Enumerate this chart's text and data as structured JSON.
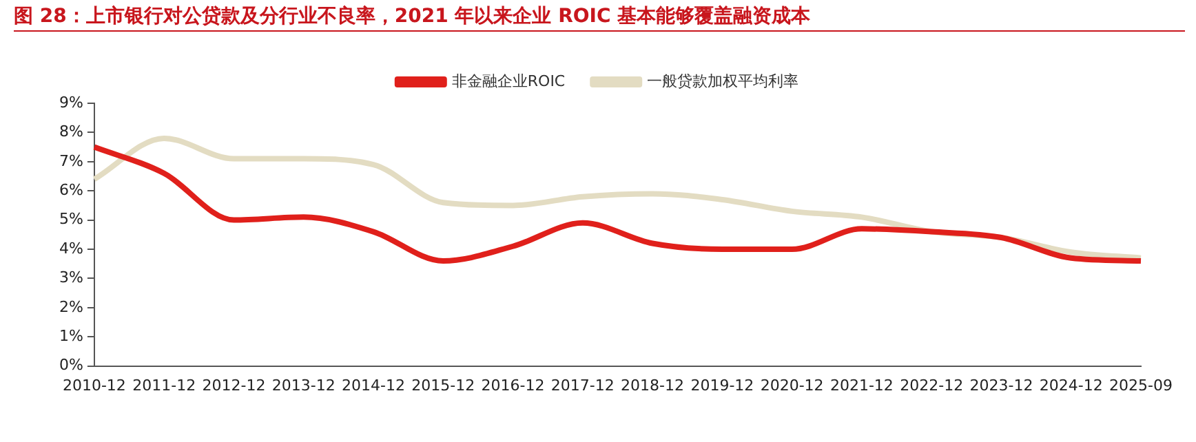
{
  "chart_data": {
    "type": "line",
    "title": "图 28：上市银行对公贷款及分行业不良率，2021 年以来企业 ROIC 基本能够覆盖融资成本",
    "categories": [
      "2010-12",
      "2011-12",
      "2012-12",
      "2013-12",
      "2014-12",
      "2015-12",
      "2016-12",
      "2017-12",
      "2018-12",
      "2019-12",
      "2020-12",
      "2021-12",
      "2022-12",
      "2023-12",
      "2024-12",
      "2025-09"
    ],
    "series": [
      {
        "name": "非金融企业ROIC",
        "color": "#e0201b",
        "values": [
          7.5,
          6.6,
          5.0,
          5.1,
          4.6,
          3.6,
          4.1,
          4.9,
          4.2,
          4.0,
          4.0,
          4.7,
          4.6,
          4.4,
          3.7,
          3.6
        ]
      },
      {
        "name": "一般贷款加权平均利率",
        "color": "#e3dcc2",
        "values": [
          6.4,
          7.8,
          7.1,
          7.1,
          6.9,
          5.6,
          5.5,
          5.8,
          5.9,
          5.7,
          5.3,
          5.1,
          4.6,
          4.4,
          3.9,
          3.7
        ]
      }
    ],
    "ylim": [
      0,
      9
    ],
    "yticks": [
      {
        "value": 0,
        "label": "0%"
      },
      {
        "value": 1,
        "label": "1%"
      },
      {
        "value": 2,
        "label": "2%"
      },
      {
        "value": 3,
        "label": "3%"
      },
      {
        "value": 4,
        "label": "4%"
      },
      {
        "value": 5,
        "label": "5%"
      },
      {
        "value": 6,
        "label": "6%"
      },
      {
        "value": 7,
        "label": "7%"
      },
      {
        "value": 8,
        "label": "8%"
      },
      {
        "value": 9,
        "label": "9%"
      }
    ],
    "grid": false,
    "legend": "top",
    "marker": "none",
    "line_style": "solid"
  }
}
